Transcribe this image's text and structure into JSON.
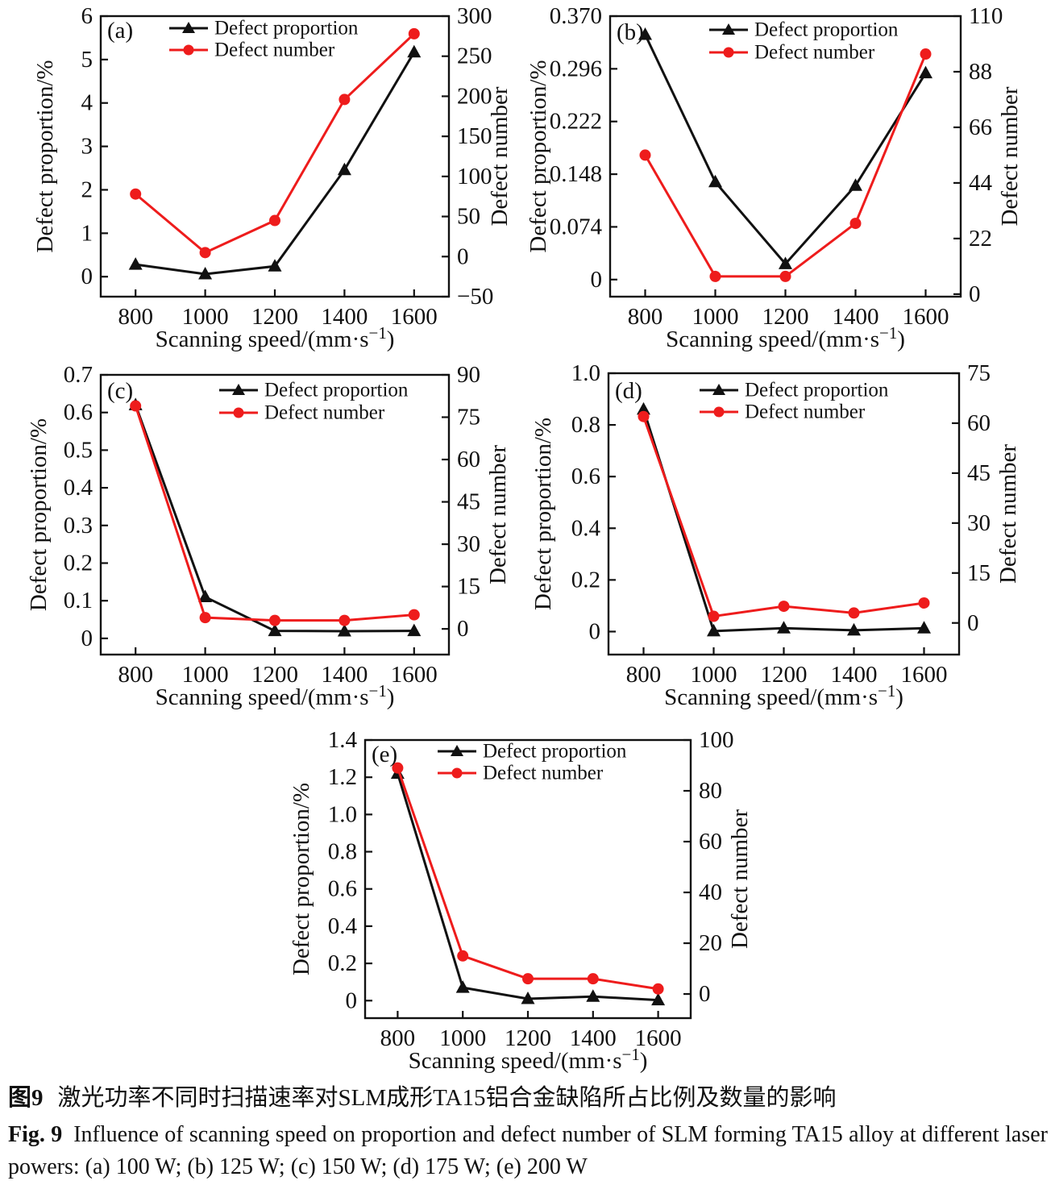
{
  "caption": {
    "zh_label": "图9",
    "zh_text": "激光功率不同时扫描速率对SLM成形TA15铝合金缺陷所占比例及数量的影响",
    "en_label": "Fig. 9",
    "en_line1": "Influence of scanning speed on proportion and defect number of SLM forming TA15 alloy at different laser",
    "en_line2": "powers: (a) 100 W; (b) 125 W; (c) 150 W; (d) 175 W; (e) 200 W"
  },
  "colors": {
    "proportion": "#111111",
    "number": "#ee1c1c"
  },
  "legend": {
    "proportion": "Defect proportion",
    "number": "Defect number"
  },
  "axis_labels": {
    "x_pre": "Scanning speed/(mm·s",
    "x_sup": "−1",
    "x_post": ")",
    "left": "Defect proportion/%",
    "right": "Defect number"
  },
  "chart_data": [
    {
      "id": "a",
      "panel": "(a)",
      "laser_power": "100 W",
      "type": "line",
      "x": [
        800,
        1000,
        1200,
        1400,
        1600
      ],
      "series": [
        {
          "name": "Defect proportion",
          "axis": "left",
          "values": [
            0.28,
            0.06,
            0.24,
            2.46,
            5.17
          ]
        },
        {
          "name": "Defect number",
          "axis": "right",
          "values": [
            78,
            5,
            45,
            196,
            278
          ]
        }
      ],
      "left_ticks": [
        "0",
        "1",
        "2",
        "3",
        "4",
        "5",
        "6"
      ],
      "right_ticks": [
        "−50",
        "0",
        "50",
        "100",
        "150",
        "200",
        "250",
        "300"
      ],
      "left_range": [
        -0.46,
        6
      ],
      "right_range": [
        -50,
        300
      ],
      "x_range": [
        700,
        1700
      ]
    },
    {
      "id": "b",
      "panel": "(b)",
      "laser_power": "125 W",
      "type": "line",
      "x": [
        800,
        1000,
        1200,
        1400,
        1600
      ],
      "series": [
        {
          "name": "Defect proportion",
          "axis": "left",
          "values": [
            0.344,
            0.137,
            0.022,
            0.132,
            0.29
          ]
        },
        {
          "name": "Defect number",
          "axis": "right",
          "values": [
            55,
            7,
            7,
            28,
            95
          ]
        }
      ],
      "left_ticks": [
        "0",
        "0.074",
        "0.148",
        "0.222",
        "0.296",
        "0.370"
      ],
      "right_ticks": [
        "0",
        "22",
        "44",
        "66",
        "88",
        "110"
      ],
      "left_range": [
        -0.024,
        0.37
      ],
      "right_range": [
        -1,
        110
      ],
      "x_range": [
        700,
        1700
      ]
    },
    {
      "id": "c",
      "panel": "(c)",
      "laser_power": "150 W",
      "type": "line",
      "x": [
        800,
        1000,
        1200,
        1400,
        1600
      ],
      "series": [
        {
          "name": "Defect proportion",
          "axis": "left",
          "values": [
            0.62,
            0.11,
            0.02,
            0.019,
            0.02
          ]
        },
        {
          "name": "Defect number",
          "axis": "right",
          "values": [
            79,
            4,
            3,
            3,
            5
          ]
        }
      ],
      "left_ticks": [
        "0",
        "0.1",
        "0.2",
        "0.3",
        "0.4",
        "0.5",
        "0.6",
        "0.7"
      ],
      "right_ticks": [
        "0",
        "15",
        "30",
        "45",
        "60",
        "75",
        "90"
      ],
      "left_range": [
        -0.043,
        0.7
      ],
      "right_range": [
        -9.1,
        90
      ],
      "x_range": [
        700,
        1700
      ]
    },
    {
      "id": "d",
      "panel": "(d)",
      "laser_power": "175 W",
      "type": "line",
      "x": [
        800,
        1000,
        1200,
        1400,
        1600
      ],
      "series": [
        {
          "name": "Defect proportion",
          "axis": "left",
          "values": [
            0.86,
            0.002,
            0.013,
            0.005,
            0.013
          ]
        },
        {
          "name": "Defect number",
          "axis": "right",
          "values": [
            62,
            2,
            5,
            3,
            6
          ]
        }
      ],
      "left_ticks": [
        "0",
        "0.2",
        "0.4",
        "0.6",
        "0.8",
        "1.0"
      ],
      "right_ticks": [
        "0",
        "15",
        "30",
        "45",
        "60",
        "75"
      ],
      "left_range": [
        -0.089,
        1.0
      ],
      "right_range": [
        -9.5,
        75
      ],
      "x_range": [
        700,
        1700
      ]
    },
    {
      "id": "e",
      "panel": "(e)",
      "laser_power": "200 W",
      "type": "line",
      "x": [
        800,
        1000,
        1200,
        1400,
        1600
      ],
      "series": [
        {
          "name": "Defect proportion",
          "axis": "left",
          "values": [
            1.22,
            0.07,
            0.01,
            0.022,
            0.003
          ]
        },
        {
          "name": "Defect number",
          "axis": "right",
          "values": [
            89,
            15,
            6,
            6,
            2
          ]
        }
      ],
      "left_ticks": [
        "0",
        "0.2",
        "0.4",
        "0.6",
        "0.8",
        "1.0",
        "1.2",
        "1.4"
      ],
      "right_ticks": [
        "0",
        "20",
        "40",
        "60",
        "80",
        "100"
      ],
      "left_range": [
        -0.094,
        1.4
      ],
      "right_range": [
        -9.5,
        100
      ],
      "x_range": [
        700,
        1700
      ]
    }
  ]
}
